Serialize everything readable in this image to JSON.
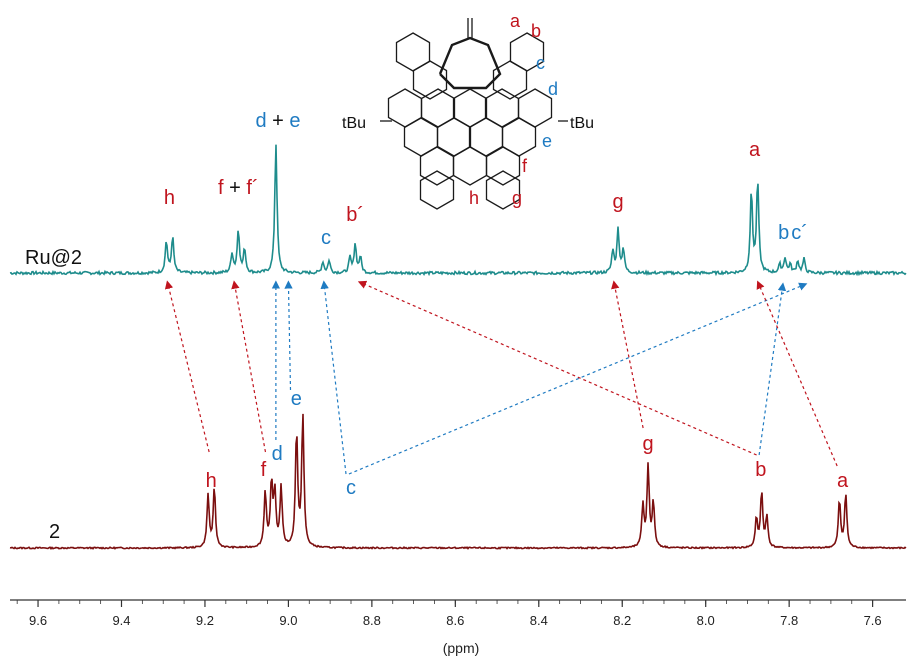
{
  "colors": {
    "ru_trace": "#1e8c8c",
    "free_trace": "#7b0f0f",
    "red_label": "#c0141e",
    "blue_label": "#1f7bc2",
    "black": "#111111",
    "axis": "#333333"
  },
  "labels": {
    "ru_trace": "Ru@2",
    "free_trace": "2",
    "xlabel": "(ppm)"
  },
  "molecule": {
    "substituent_left": "tBu",
    "substituent_right": "tBu",
    "positions": [
      {
        "text": "a",
        "color": "red"
      },
      {
        "text": "b",
        "color": "red"
      },
      {
        "text": "c",
        "color": "blue"
      },
      {
        "text": "d",
        "color": "blue"
      },
      {
        "text": "e",
        "color": "blue"
      },
      {
        "text": "f",
        "color": "red"
      },
      {
        "text": "g",
        "color": "red"
      },
      {
        "text": "h",
        "color": "red"
      }
    ]
  },
  "chart_data": {
    "type": "line",
    "xlabel": "(ppm)",
    "xlim": [
      9.66,
      7.52
    ],
    "x_reversed": true,
    "ticks": [
      "9.6",
      "9.4",
      "9.2",
      "9.0",
      "8.8",
      "8.6",
      "8.4",
      "8.2",
      "8.0",
      "7.8",
      "7.6"
    ],
    "tick_values": [
      9.6,
      9.4,
      9.2,
      9.0,
      8.8,
      8.6,
      8.4,
      8.2,
      8.0,
      7.8,
      7.6
    ],
    "series": [
      {
        "name": "Ru@2",
        "color": "#1e8c8c",
        "peaks": [
          {
            "label": "h",
            "parts": [
              {
                "text": "h",
                "color": "red"
              }
            ],
            "ppm": 9.285,
            "height": 1.0,
            "mult": "d"
          },
          {
            "label": "f + f´",
            "parts": [
              {
                "text": "f",
                "color": "red"
              },
              {
                "text": " + ",
                "color": "black"
              },
              {
                "text": "f´",
                "color": "red"
              }
            ],
            "ppm": 9.125,
            "height": 1.2,
            "mult": "m"
          },
          {
            "label": "d + e",
            "parts": [
              {
                "text": "d",
                "color": "blue"
              },
              {
                "text": " + ",
                "color": "black"
              },
              {
                "text": "e",
                "color": "blue"
              }
            ],
            "ppm": 9.03,
            "height": 3.6,
            "mult": "s"
          },
          {
            "label": "c",
            "parts": [
              {
                "text": "c",
                "color": "blue"
              }
            ],
            "ppm": 8.91,
            "height": 0.35,
            "mult": "d"
          },
          {
            "label": "b´",
            "parts": [
              {
                "text": "b´",
                "color": "red"
              }
            ],
            "ppm": 8.84,
            "height": 0.8,
            "mult": "t"
          },
          {
            "label": "g",
            "parts": [
              {
                "text": "g",
                "color": "red"
              }
            ],
            "ppm": 8.21,
            "height": 1.2,
            "mult": "t"
          },
          {
            "label": "a",
            "parts": [
              {
                "text": "a",
                "color": "red"
              }
            ],
            "ppm": 7.883,
            "height": 2.55,
            "mult": "d"
          },
          {
            "label": "b",
            "parts": [
              {
                "text": "b",
                "color": "blue"
              }
            ],
            "ppm": 7.81,
            "height": 0.42,
            "mult": "t"
          },
          {
            "label": "c´",
            "parts": [
              {
                "text": "c´",
                "color": "blue"
              }
            ],
            "ppm": 7.772,
            "height": 0.38,
            "mult": "d"
          }
        ]
      },
      {
        "name": "2",
        "color": "#7b0f0f",
        "peaks": [
          {
            "label": "h",
            "parts": [
              {
                "text": "h",
                "color": "red"
              }
            ],
            "ppm": 9.185,
            "height": 1.65,
            "mult": "d"
          },
          {
            "label": "f",
            "parts": [
              {
                "text": "f",
                "color": "red"
              }
            ],
            "ppm": 9.048,
            "height": 1.75,
            "mult": "d"
          },
          {
            "label": "d",
            "parts": [
              {
                "text": "d",
                "color": "blue"
              }
            ],
            "ppm": 9.025,
            "height": 1.65,
            "mult": "d"
          },
          {
            "label": "e",
            "parts": [
              {
                "text": "e",
                "color": "blue"
              }
            ],
            "ppm": 8.973,
            "height": 3.65,
            "mult": "d"
          },
          {
            "label": "c",
            "parts": [
              {
                "text": "c",
                "color": "blue"
              }
            ],
            "ppm": 8.85,
            "height": 0,
            "mult": "none"
          },
          {
            "label": "g",
            "parts": [
              {
                "text": "g",
                "color": "red"
              }
            ],
            "ppm": 8.138,
            "height": 2.25,
            "mult": "t"
          },
          {
            "label": "b",
            "parts": [
              {
                "text": "b",
                "color": "red"
              }
            ],
            "ppm": 7.866,
            "height": 1.55,
            "mult": "t"
          },
          {
            "label": "a",
            "parts": [
              {
                "text": "a",
                "color": "red"
              }
            ],
            "ppm": 7.672,
            "height": 1.5,
            "mult": "d"
          }
        ]
      }
    ],
    "assignments": [
      {
        "from": "h",
        "to": "h",
        "color": "red"
      },
      {
        "from": "f",
        "to": "f + f´",
        "color": "red"
      },
      {
        "from": "d",
        "to": "d + e",
        "color": "blue"
      },
      {
        "from": "e",
        "to": "d + e",
        "color": "blue"
      },
      {
        "from": "c",
        "to": "c",
        "color": "blue"
      },
      {
        "from": "c",
        "to": "c´",
        "color": "blue"
      },
      {
        "from": "b",
        "to": "b´",
        "color": "red"
      },
      {
        "from": "b",
        "to": "b",
        "color": "blue"
      },
      {
        "from": "g",
        "to": "g",
        "color": "red"
      },
      {
        "from": "a",
        "to": "a",
        "color": "red"
      }
    ]
  }
}
